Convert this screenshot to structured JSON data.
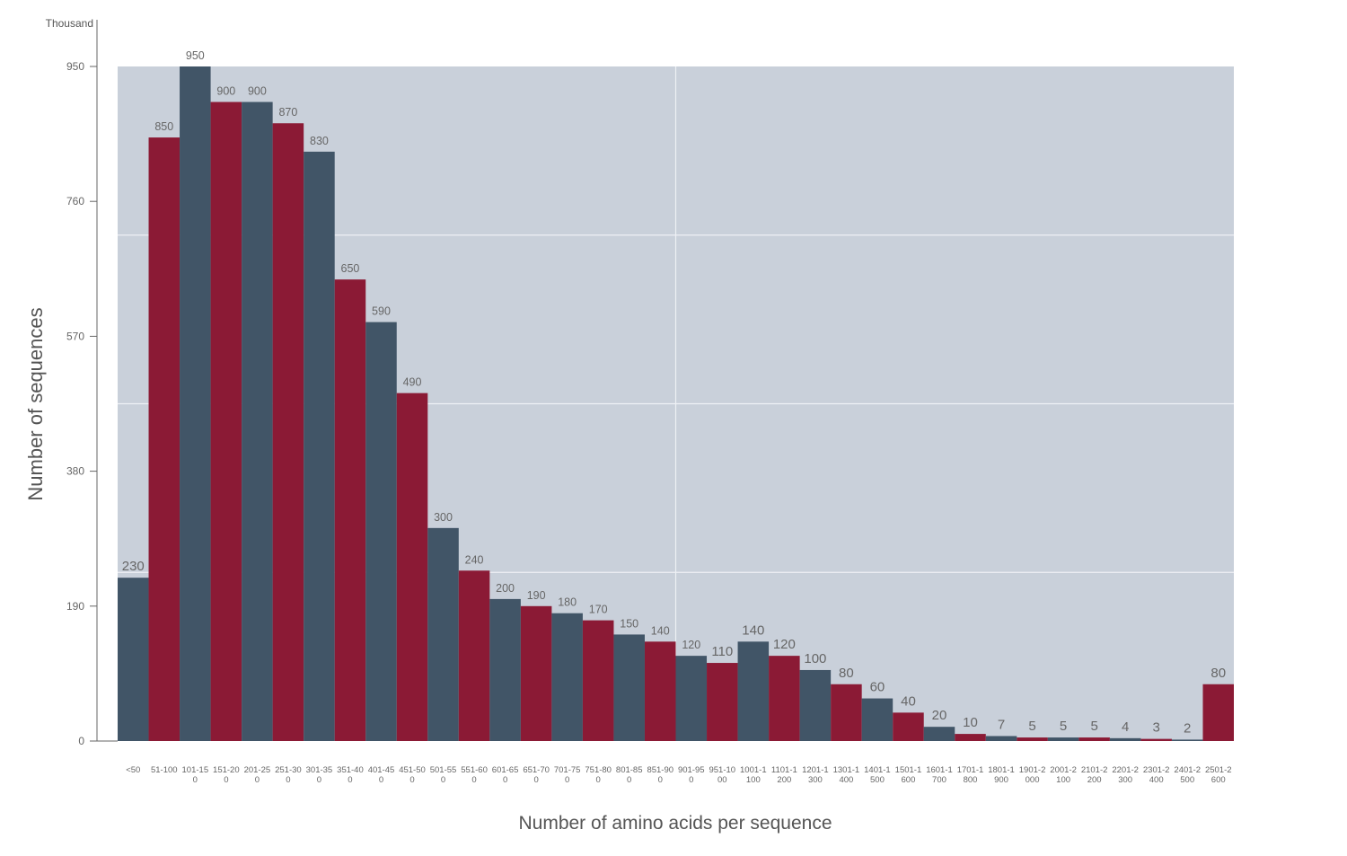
{
  "colors": {
    "plot_background": "#c9d0da",
    "gridline": "#eef1f5",
    "series_a": "#415567",
    "series_b": "#8b1a35",
    "axis": "#666666",
    "label_text": "#666666",
    "title_text": "#555555"
  },
  "chart_data": {
    "type": "bar",
    "unit_label": "Thousand",
    "xlabel": "Number of amino acids per sequence",
    "ylabel": "Number of sequences",
    "ylim": [
      0,
      950
    ],
    "yticks": [
      0,
      190,
      380,
      570,
      760,
      950
    ],
    "grid": true,
    "categories": [
      [
        "<50"
      ],
      [
        "51-100"
      ],
      [
        "101-15",
        "0"
      ],
      [
        "151-20",
        "0"
      ],
      [
        "201-25",
        "0"
      ],
      [
        "251-30",
        "0"
      ],
      [
        "301-35",
        "0"
      ],
      [
        "351-40",
        "0"
      ],
      [
        "401-45",
        "0"
      ],
      [
        "451-50",
        "0"
      ],
      [
        "501-55",
        "0"
      ],
      [
        "551-60",
        "0"
      ],
      [
        "601-65",
        "0"
      ],
      [
        "651-70",
        "0"
      ],
      [
        "701-75",
        "0"
      ],
      [
        "751-80",
        "0"
      ],
      [
        "801-85",
        "0"
      ],
      [
        "851-90",
        "0"
      ],
      [
        "901-95",
        "0"
      ],
      [
        "951-10",
        "00"
      ],
      [
        "1001-1",
        "100"
      ],
      [
        "1101-1",
        "200"
      ],
      [
        "1201-1",
        "300"
      ],
      [
        "1301-1",
        "400"
      ],
      [
        "1401-1",
        "500"
      ],
      [
        "1501-1",
        "600"
      ],
      [
        "1601-1",
        "700"
      ],
      [
        "1701-1",
        "800"
      ],
      [
        "1801-1",
        "900"
      ],
      [
        "1901-2",
        "000"
      ],
      [
        "2001-2",
        "100"
      ],
      [
        "2101-2",
        "200"
      ],
      [
        "2201-2",
        "300"
      ],
      [
        "2301-2",
        "400"
      ],
      [
        "2401-2",
        "500"
      ],
      [
        "2501-2",
        "600"
      ]
    ],
    "values": [
      230,
      850,
      950,
      900,
      900,
      870,
      830,
      650,
      590,
      490,
      300,
      240,
      200,
      190,
      180,
      170,
      150,
      140,
      120,
      110,
      140,
      120,
      100,
      80,
      60,
      40,
      20,
      10,
      7,
      5,
      5,
      5,
      4,
      3,
      2,
      80
    ],
    "bar_color_pattern": [
      "series_a",
      "series_b"
    ]
  }
}
